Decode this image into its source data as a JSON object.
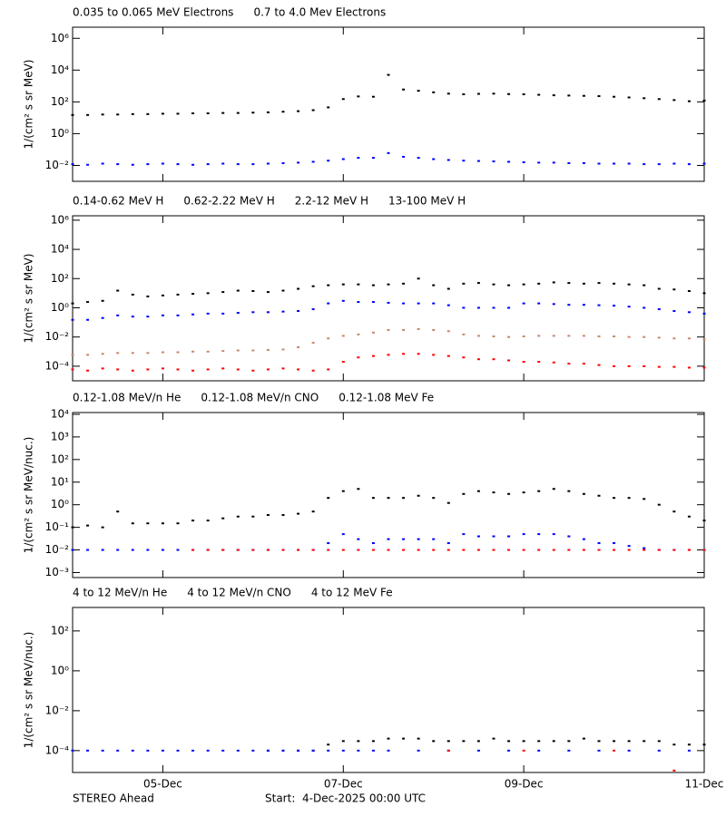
{
  "chart_data": [
    {
      "type": "scatter",
      "ylabel": "1/(cm² s sr MeV)",
      "log_y": true,
      "ylim": [
        0.001,
        5000000
      ],
      "yticks": [
        {
          "value": 0.01,
          "label": "10⁻²"
        },
        {
          "value": 1,
          "label": "10⁰"
        },
        {
          "value": 100,
          "label": "10²"
        },
        {
          "value": 10000,
          "label": "10⁴"
        },
        {
          "value": 1000000,
          "label": "10⁶"
        }
      ],
      "xlim": [
        "2025-12-04 00:00",
        "2025-12-11 00:00"
      ],
      "x": [
        "2025-12-04 00:00",
        "2025-12-04 04:00",
        "2025-12-04 08:00",
        "2025-12-04 12:00",
        "2025-12-04 16:00",
        "2025-12-04 20:00",
        "2025-12-05 00:00",
        "2025-12-05 04:00",
        "2025-12-05 08:00",
        "2025-12-05 12:00",
        "2025-12-05 16:00",
        "2025-12-05 20:00",
        "2025-12-06 00:00",
        "2025-12-06 04:00",
        "2025-12-06 08:00",
        "2025-12-06 12:00",
        "2025-12-06 16:00",
        "2025-12-06 20:00",
        "2025-12-07 00:00",
        "2025-12-07 04:00",
        "2025-12-07 08:00",
        "2025-12-07 12:00",
        "2025-12-07 16:00",
        "2025-12-07 20:00",
        "2025-12-08 00:00",
        "2025-12-08 04:00",
        "2025-12-08 08:00",
        "2025-12-08 12:00",
        "2025-12-08 16:00",
        "2025-12-08 20:00",
        "2025-12-09 00:00",
        "2025-12-09 04:00",
        "2025-12-09 08:00",
        "2025-12-09 12:00",
        "2025-12-09 16:00",
        "2025-12-09 20:00",
        "2025-12-10 00:00",
        "2025-12-10 04:00",
        "2025-12-10 08:00",
        "2025-12-10 12:00",
        "2025-12-10 16:00",
        "2025-12-10 20:00",
        "2025-12-11 00:00"
      ],
      "series": [
        {
          "name": "0.035 to 0.065 MeV Electrons",
          "color": "#000000",
          "values": [
            15,
            15,
            16,
            16,
            17,
            17,
            18,
            18,
            19,
            19,
            20,
            20,
            21,
            22,
            24,
            26,
            30,
            45,
            150,
            220,
            210,
            5000,
            600,
            500,
            400,
            330,
            300,
            320,
            330,
            310,
            300,
            280,
            260,
            250,
            240,
            230,
            210,
            190,
            170,
            150,
            130,
            110,
            120
          ]
        },
        {
          "name": "0.7 to 4.0 Mev Electrons",
          "color": "#0000ff",
          "values": [
            0.012,
            0.011,
            0.013,
            0.012,
            0.011,
            0.012,
            0.013,
            0.012,
            0.011,
            0.012,
            0.013,
            0.012,
            0.012,
            0.013,
            0.014,
            0.015,
            0.017,
            0.02,
            0.025,
            0.03,
            0.03,
            0.06,
            0.035,
            0.03,
            0.025,
            0.022,
            0.02,
            0.019,
            0.018,
            0.017,
            0.016,
            0.015,
            0.015,
            0.014,
            0.014,
            0.013,
            0.013,
            0.013,
            0.012,
            0.012,
            0.013,
            0.012,
            0.013
          ]
        }
      ]
    },
    {
      "type": "scatter",
      "ylabel": "1/(cm² s sr MeV)",
      "log_y": true,
      "ylim": [
        1e-05,
        2000000
      ],
      "yticks": [
        {
          "value": 0.0001,
          "label": "10⁻⁴"
        },
        {
          "value": 0.01,
          "label": "10⁻²"
        },
        {
          "value": 1,
          "label": "10⁰"
        },
        {
          "value": 100,
          "label": "10²"
        },
        {
          "value": 10000,
          "label": "10⁴"
        },
        {
          "value": 1000000,
          "label": "10⁶"
        }
      ],
      "xlim": [
        "2025-12-04 00:00",
        "2025-12-11 00:00"
      ],
      "x": [
        "2025-12-04 00:00",
        "2025-12-04 04:00",
        "2025-12-04 08:00",
        "2025-12-04 12:00",
        "2025-12-04 16:00",
        "2025-12-04 20:00",
        "2025-12-05 00:00",
        "2025-12-05 04:00",
        "2025-12-05 08:00",
        "2025-12-05 12:00",
        "2025-12-05 16:00",
        "2025-12-05 20:00",
        "2025-12-06 00:00",
        "2025-12-06 04:00",
        "2025-12-06 08:00",
        "2025-12-06 12:00",
        "2025-12-06 16:00",
        "2025-12-06 20:00",
        "2025-12-07 00:00",
        "2025-12-07 04:00",
        "2025-12-07 08:00",
        "2025-12-07 12:00",
        "2025-12-07 16:00",
        "2025-12-07 20:00",
        "2025-12-08 00:00",
        "2025-12-08 04:00",
        "2025-12-08 08:00",
        "2025-12-08 12:00",
        "2025-12-08 16:00",
        "2025-12-08 20:00",
        "2025-12-09 00:00",
        "2025-12-09 04:00",
        "2025-12-09 08:00",
        "2025-12-09 12:00",
        "2025-12-09 16:00",
        "2025-12-09 20:00",
        "2025-12-10 00:00",
        "2025-12-10 04:00",
        "2025-12-10 08:00",
        "2025-12-10 12:00",
        "2025-12-10 16:00",
        "2025-12-10 20:00",
        "2025-12-11 00:00"
      ],
      "series": [
        {
          "name": "0.14-0.62 MeV H",
          "color": "#000000",
          "values": [
            2,
            2.5,
            3,
            15,
            8,
            6,
            7,
            8,
            9,
            10,
            12,
            15,
            14,
            12,
            15,
            20,
            30,
            35,
            40,
            40,
            35,
            40,
            45,
            100,
            35,
            20,
            45,
            50,
            40,
            35,
            40,
            45,
            55,
            50,
            45,
            50,
            45,
            40,
            35,
            20,
            18,
            14,
            10
          ]
        },
        {
          "name": "0.62-2.22 MeV H",
          "color": "#0000ff",
          "values": [
            0.15,
            0.15,
            0.2,
            0.3,
            0.25,
            0.25,
            0.3,
            0.3,
            0.35,
            0.4,
            0.4,
            0.45,
            0.5,
            0.5,
            0.55,
            0.6,
            0.8,
            2,
            3,
            2.5,
            2.5,
            2.2,
            2,
            2,
            2,
            1.5,
            1,
            1,
            1,
            1,
            2,
            2,
            1.8,
            1.6,
            1.6,
            1.5,
            1.4,
            1.2,
            1,
            0.8,
            0.6,
            0.5,
            0.4
          ]
        },
        {
          "name": "2.2-12 MeV H",
          "color": "#c8876e",
          "values": [
            0.0006,
            0.0006,
            0.0007,
            0.0008,
            0.0008,
            0.0008,
            0.0009,
            0.0009,
            0.001,
            0.001,
            0.0011,
            0.0012,
            0.0012,
            0.0013,
            0.0014,
            0.002,
            0.004,
            0.008,
            0.012,
            0.015,
            0.02,
            0.03,
            0.03,
            0.035,
            0.03,
            0.025,
            0.015,
            0.012,
            0.011,
            0.01,
            0.011,
            0.012,
            0.012,
            0.012,
            0.012,
            0.011,
            0.011,
            0.01,
            0.01,
            0.009,
            0.008,
            0.008,
            0.007
          ]
        },
        {
          "name": "13-100 MeV H",
          "color": "#ff0000",
          "values": [
            6e-05,
            5e-05,
            7e-05,
            6e-05,
            5e-05,
            6e-05,
            7e-05,
            6e-05,
            5e-05,
            6e-05,
            7e-05,
            6e-05,
            5e-05,
            6e-05,
            7e-05,
            6e-05,
            5e-05,
            6e-05,
            0.0002,
            0.0004,
            0.0005,
            0.0006,
            0.0007,
            0.0007,
            0.0006,
            0.0005,
            0.0004,
            0.0003,
            0.0003,
            0.00025,
            0.0002,
            0.0002,
            0.00018,
            0.00015,
            0.00015,
            0.00012,
            0.0001,
            0.0001,
            0.0001,
            9e-05,
            9e-05,
            8e-05,
            8e-05
          ]
        }
      ]
    },
    {
      "type": "scatter",
      "ylabel": "1/(cm² s sr MeV/nuc.)",
      "log_y": true,
      "ylim": [
        0.0006,
        12000
      ],
      "yticks": [
        {
          "value": 0.001,
          "label": "10⁻³"
        },
        {
          "value": 0.01,
          "label": "10⁻²"
        },
        {
          "value": 0.1,
          "label": "10⁻¹"
        },
        {
          "value": 1,
          "label": "10⁰"
        },
        {
          "value": 10,
          "label": "10¹"
        },
        {
          "value": 100,
          "label": "10²"
        },
        {
          "value": 1000,
          "label": "10³"
        },
        {
          "value": 10000,
          "label": "10⁴"
        }
      ],
      "xlim": [
        "2025-12-04 00:00",
        "2025-12-11 00:00"
      ],
      "x": [
        "2025-12-04 00:00",
        "2025-12-04 04:00",
        "2025-12-04 08:00",
        "2025-12-04 12:00",
        "2025-12-04 16:00",
        "2025-12-04 20:00",
        "2025-12-05 00:00",
        "2025-12-05 04:00",
        "2025-12-05 08:00",
        "2025-12-05 12:00",
        "2025-12-05 16:00",
        "2025-12-05 20:00",
        "2025-12-06 00:00",
        "2025-12-06 04:00",
        "2025-12-06 08:00",
        "2025-12-06 12:00",
        "2025-12-06 16:00",
        "2025-12-06 20:00",
        "2025-12-07 00:00",
        "2025-12-07 04:00",
        "2025-12-07 08:00",
        "2025-12-07 12:00",
        "2025-12-07 16:00",
        "2025-12-07 20:00",
        "2025-12-08 00:00",
        "2025-12-08 04:00",
        "2025-12-08 08:00",
        "2025-12-08 12:00",
        "2025-12-08 16:00",
        "2025-12-08 20:00",
        "2025-12-09 00:00",
        "2025-12-09 04:00",
        "2025-12-09 08:00",
        "2025-12-09 12:00",
        "2025-12-09 16:00",
        "2025-12-09 20:00",
        "2025-12-10 00:00",
        "2025-12-10 04:00",
        "2025-12-10 08:00",
        "2025-12-10 12:00",
        "2025-12-10 16:00",
        "2025-12-10 20:00",
        "2025-12-11 00:00"
      ],
      "series": [
        {
          "name": "0.12-1.08 MeV/n He",
          "color": "#000000",
          "values": [
            0.1,
            0.12,
            0.1,
            0.5,
            0.15,
            0.15,
            0.15,
            0.15,
            0.2,
            0.2,
            0.25,
            0.3,
            0.3,
            0.35,
            0.35,
            0.4,
            0.5,
            2,
            4,
            5,
            2,
            2,
            2,
            2.5,
            2,
            1.2,
            3,
            4,
            3.5,
            3,
            3.5,
            4,
            5,
            4,
            3,
            2.5,
            2,
            2,
            1.8,
            1,
            0.5,
            0.3,
            0.2
          ]
        },
        {
          "name": "0.12-1.08 MeV/n CNO",
          "color": "#0000ff",
          "values": [
            0.01,
            0.01,
            0.01,
            0.01,
            0.01,
            0.01,
            0.01,
            0.01,
            0.01,
            0.01,
            0.01,
            0.01,
            0.01,
            0.01,
            0.01,
            0.01,
            0.01,
            0.02,
            0.05,
            0.03,
            0.02,
            0.03,
            0.03,
            0.03,
            0.03,
            0.02,
            0.05,
            0.04,
            0.04,
            0.04,
            0.05,
            0.05,
            0.05,
            0.04,
            0.03,
            0.02,
            0.02,
            0.015,
            0.012,
            0.01,
            0.01,
            0.01,
            0.01
          ]
        },
        {
          "name": "0.12-1.08 MeV Fe",
          "color": "#ff0000",
          "values": [
            null,
            null,
            null,
            null,
            null,
            null,
            null,
            null,
            0.01,
            0.01,
            0.01,
            0.01,
            0.01,
            0.01,
            0.01,
            0.01,
            0.01,
            0.01,
            0.01,
            0.01,
            0.01,
            0.01,
            0.01,
            0.01,
            0.01,
            0.01,
            0.01,
            0.01,
            0.01,
            0.01,
            0.01,
            0.01,
            0.01,
            0.01,
            0.01,
            0.01,
            0.01,
            0.01,
            0.01,
            0.01,
            0.01,
            0.01,
            0.01
          ]
        }
      ]
    },
    {
      "type": "scatter",
      "ylabel": "1/(cm² s sr MeV/nuc.)",
      "log_y": true,
      "ylim": [
        8e-06,
        1500
      ],
      "yticks": [
        {
          "value": 0.0001,
          "label": "10⁻⁴"
        },
        {
          "value": 0.01,
          "label": "10⁻²"
        },
        {
          "value": 1,
          "label": "10⁰"
        },
        {
          "value": 100,
          "label": "10²"
        }
      ],
      "xlim": [
        "2025-12-04 00:00",
        "2025-12-11 00:00"
      ],
      "xticks": [
        {
          "value": "2025-12-05 00:00",
          "label": "05-Dec"
        },
        {
          "value": "2025-12-07 00:00",
          "label": "07-Dec"
        },
        {
          "value": "2025-12-09 00:00",
          "label": "09-Dec"
        },
        {
          "value": "2025-12-11 00:00",
          "label": "11-Dec"
        }
      ],
      "x": [
        "2025-12-04 00:00",
        "2025-12-04 04:00",
        "2025-12-04 08:00",
        "2025-12-04 12:00",
        "2025-12-04 16:00",
        "2025-12-04 20:00",
        "2025-12-05 00:00",
        "2025-12-05 04:00",
        "2025-12-05 08:00",
        "2025-12-05 12:00",
        "2025-12-05 16:00",
        "2025-12-05 20:00",
        "2025-12-06 00:00",
        "2025-12-06 04:00",
        "2025-12-06 08:00",
        "2025-12-06 12:00",
        "2025-12-06 16:00",
        "2025-12-06 20:00",
        "2025-12-07 00:00",
        "2025-12-07 04:00",
        "2025-12-07 08:00",
        "2025-12-07 12:00",
        "2025-12-07 16:00",
        "2025-12-07 20:00",
        "2025-12-08 00:00",
        "2025-12-08 04:00",
        "2025-12-08 08:00",
        "2025-12-08 12:00",
        "2025-12-08 16:00",
        "2025-12-08 20:00",
        "2025-12-09 00:00",
        "2025-12-09 04:00",
        "2025-12-09 08:00",
        "2025-12-09 12:00",
        "2025-12-09 16:00",
        "2025-12-09 20:00",
        "2025-12-10 00:00",
        "2025-12-10 04:00",
        "2025-12-10 08:00",
        "2025-12-10 12:00",
        "2025-12-10 16:00",
        "2025-12-10 20:00",
        "2025-12-11 00:00"
      ],
      "series": [
        {
          "name": "4 to 12 MeV/n He",
          "color": "#000000",
          "values": [
            null,
            null,
            null,
            null,
            null,
            null,
            null,
            null,
            null,
            null,
            null,
            null,
            null,
            0.0001,
            0.0001,
            0.0001,
            0.0001,
            0.0002,
            0.0003,
            0.0003,
            0.0003,
            0.0004,
            0.0004,
            0.0004,
            0.0003,
            0.0003,
            0.0003,
            0.0003,
            0.0004,
            0.0003,
            0.0003,
            0.0003,
            0.0003,
            0.0003,
            0.0004,
            0.0003,
            0.0003,
            0.0003,
            0.0003,
            0.0003,
            0.0002,
            0.0002,
            0.0002
          ]
        },
        {
          "name": "4 to 12 MeV/n CNO",
          "color": "#0000ff",
          "values": [
            0.0001,
            0.0001,
            0.0001,
            0.0001,
            0.0001,
            0.0001,
            0.0001,
            0.0001,
            0.0001,
            0.0001,
            0.0001,
            0.0001,
            0.0001,
            0.0001,
            0.0001,
            0.0001,
            0.0001,
            0.0001,
            0.0001,
            0.0001,
            0.0001,
            0.0001,
            null,
            0.0001,
            null,
            0.0001,
            null,
            0.0001,
            null,
            0.0001,
            null,
            0.0001,
            null,
            0.0001,
            null,
            0.0001,
            null,
            0.0001,
            null,
            0.0001,
            null,
            0.0001,
            null
          ]
        },
        {
          "name": "4 to 12 MeV Fe",
          "color": "#ff0000",
          "values": [
            null,
            null,
            null,
            null,
            null,
            null,
            null,
            null,
            null,
            null,
            null,
            null,
            null,
            null,
            null,
            null,
            null,
            null,
            null,
            null,
            null,
            null,
            null,
            null,
            null,
            0.0001,
            null,
            null,
            null,
            null,
            0.0001,
            null,
            null,
            null,
            null,
            null,
            0.0001,
            null,
            null,
            null,
            1e-05,
            null,
            null
          ]
        }
      ]
    }
  ],
  "footer": {
    "left": "STEREO Ahead",
    "start": "Start:  4-Dec-2025 00:00 UTC"
  }
}
